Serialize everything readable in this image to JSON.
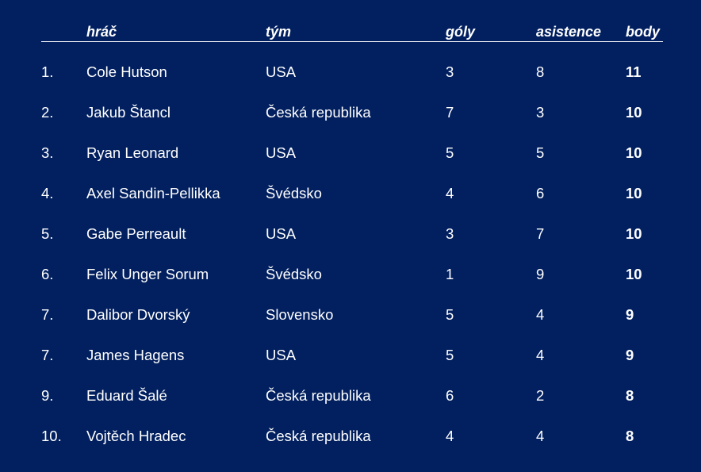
{
  "table": {
    "headers": {
      "player": "hráč",
      "team": "tým",
      "goals": "góly",
      "assists": "asistence",
      "points": "body"
    },
    "rows": [
      {
        "rank": "1.",
        "player": "Cole Hutson",
        "team": "USA",
        "goals": "3",
        "assists": "8",
        "points": "11"
      },
      {
        "rank": "2.",
        "player": "Jakub Štancl",
        "team": "Česká republika",
        "goals": "7",
        "assists": "3",
        "points": "10"
      },
      {
        "rank": "3.",
        "player": "Ryan Leonard",
        "team": "USA",
        "goals": "5",
        "assists": "5",
        "points": "10"
      },
      {
        "rank": "4.",
        "player": "Axel Sandin-Pellikka",
        "team": "Švédsko",
        "goals": "4",
        "assists": "6",
        "points": "10"
      },
      {
        "rank": "5.",
        "player": "Gabe Perreault",
        "team": "USA",
        "goals": "3",
        "assists": "7",
        "points": "10"
      },
      {
        "rank": "6.",
        "player": "Felix Unger Sorum",
        "team": "Švédsko",
        "goals": "1",
        "assists": "9",
        "points": "10"
      },
      {
        "rank": "7.",
        "player": "Dalibor Dvorský",
        "team": "Slovensko",
        "goals": "5",
        "assists": "4",
        "points": "9"
      },
      {
        "rank": "7.",
        "player": "James Hagens",
        "team": "USA",
        "goals": "5",
        "assists": "4",
        "points": "9"
      },
      {
        "rank": "9.",
        "player": "Eduard Šalé",
        "team": "Česká republika",
        "goals": "6",
        "assists": "2",
        "points": "8"
      },
      {
        "rank": "10.",
        "player": "Vojtěch Hradec",
        "team": "Česká republika",
        "goals": "4",
        "assists": "4",
        "points": "8"
      }
    ]
  },
  "colors": {
    "background": "#02205f",
    "text": "#ffffff"
  }
}
